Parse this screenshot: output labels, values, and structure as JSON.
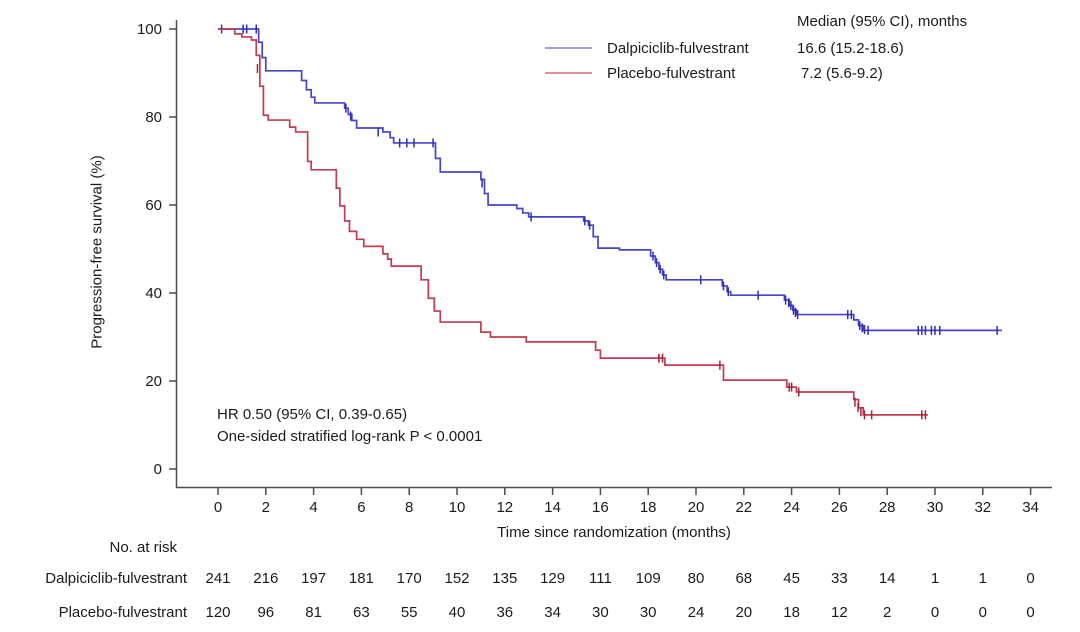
{
  "chart_data": {
    "type": "line",
    "subtype": "kaplan-meier-step",
    "title": "",
    "xlabel": "Time since randomization (months)",
    "ylabel": "Progression-free survival (%)",
    "xlim": [
      0,
      34
    ],
    "ylim": [
      0,
      100
    ],
    "xticks": [
      0,
      2,
      4,
      6,
      8,
      10,
      12,
      14,
      16,
      18,
      20,
      22,
      24,
      26,
      28,
      30,
      32,
      34
    ],
    "yticks": [
      0,
      20,
      40,
      60,
      80,
      100
    ],
    "grid": false,
    "legend_header": "Median (95% CI), months",
    "annotations": [
      "HR 0.50 (95% CI, 0.39-0.65)",
      "One-sided stratified log-rank P < 0.0001"
    ],
    "series": [
      {
        "name": "Dalpiciclib-fulvestrant",
        "median_label": "16.6 (15.2-18.6)",
        "color": "#4444cd",
        "censor_color": "#2d2db4",
        "legend_color": "#9b9ce6",
        "end_time": 32.8,
        "steps": [
          [
            0,
            100
          ],
          [
            1.7,
            97
          ],
          [
            1.85,
            93.5
          ],
          [
            2.0,
            90.5
          ],
          [
            3.5,
            88.3
          ],
          [
            3.7,
            86.2
          ],
          [
            3.9,
            84.5
          ],
          [
            4.05,
            83.2
          ],
          [
            5.3,
            82.0
          ],
          [
            5.45,
            80.6
          ],
          [
            5.6,
            79.2
          ],
          [
            5.8,
            77.5
          ],
          [
            6.9,
            76.6
          ],
          [
            7.2,
            75.3
          ],
          [
            7.35,
            74.1
          ],
          [
            9.1,
            70.6
          ],
          [
            9.3,
            67.5
          ],
          [
            11.0,
            65.8
          ],
          [
            11.15,
            62.6
          ],
          [
            11.3,
            60.0
          ],
          [
            12.5,
            59.2
          ],
          [
            12.75,
            58.2
          ],
          [
            13.0,
            57.3
          ],
          [
            15.3,
            56.4
          ],
          [
            15.5,
            55.4
          ],
          [
            15.7,
            52.8
          ],
          [
            15.9,
            50.2
          ],
          [
            16.8,
            49.8
          ],
          [
            18.1,
            48.4
          ],
          [
            18.3,
            46.9
          ],
          [
            18.45,
            45.4
          ],
          [
            18.6,
            44.1
          ],
          [
            18.75,
            43.0
          ],
          [
            21.1,
            41.6
          ],
          [
            21.3,
            40.3
          ],
          [
            21.45,
            39.5
          ],
          [
            23.7,
            38.4
          ],
          [
            23.9,
            37.2
          ],
          [
            24.05,
            36.1
          ],
          [
            24.2,
            35.1
          ],
          [
            26.6,
            33.9
          ],
          [
            26.8,
            32.6
          ],
          [
            27.0,
            31.5
          ]
        ],
        "censors": [
          [
            0.15,
            100
          ],
          [
            1.05,
            100
          ],
          [
            1.2,
            100
          ],
          [
            1.6,
            100
          ],
          [
            5.35,
            82
          ],
          [
            5.55,
            80.2
          ],
          [
            6.7,
            76.6
          ],
          [
            7.6,
            74.1
          ],
          [
            7.9,
            74.1
          ],
          [
            8.2,
            74.1
          ],
          [
            9.0,
            74.1
          ],
          [
            11.05,
            65.0
          ],
          [
            13.1,
            57.3
          ],
          [
            15.35,
            56.4
          ],
          [
            15.55,
            55.4
          ],
          [
            18.2,
            48.4
          ],
          [
            18.35,
            46.9
          ],
          [
            18.5,
            45.4
          ],
          [
            18.65,
            44.1
          ],
          [
            20.2,
            43.0
          ],
          [
            21.15,
            41.6
          ],
          [
            21.35,
            40.3
          ],
          [
            22.6,
            39.5
          ],
          [
            23.75,
            38.4
          ],
          [
            23.88,
            37.8
          ],
          [
            23.97,
            37.2
          ],
          [
            24.08,
            36.1
          ],
          [
            24.16,
            35.6
          ],
          [
            24.25,
            35.1
          ],
          [
            26.35,
            35.1
          ],
          [
            26.5,
            35.1
          ],
          [
            26.85,
            32.6
          ],
          [
            26.95,
            32.1
          ],
          [
            27.05,
            31.7
          ],
          [
            27.2,
            31.5
          ],
          [
            29.3,
            31.5
          ],
          [
            29.45,
            31.5
          ],
          [
            29.6,
            31.5
          ],
          [
            29.85,
            31.5
          ],
          [
            30.0,
            31.5
          ],
          [
            30.2,
            31.5
          ],
          [
            32.6,
            31.5
          ]
        ]
      },
      {
        "name": "Placebo-fulvestrant",
        "median_label": "7.2 (5.6-9.2)",
        "color": "#c23b50",
        "censor_color": "#a32337",
        "legend_color": "#e58f97",
        "end_time": 29.7,
        "steps": [
          [
            0,
            100
          ],
          [
            0.7,
            98.9
          ],
          [
            1.0,
            98.2
          ],
          [
            1.4,
            97.5
          ],
          [
            1.6,
            94.0
          ],
          [
            1.75,
            87.0
          ],
          [
            1.9,
            80.4
          ],
          [
            2.1,
            79.3
          ],
          [
            3.0,
            77.7
          ],
          [
            3.25,
            76.6
          ],
          [
            3.75,
            69.9
          ],
          [
            3.9,
            68.0
          ],
          [
            4.95,
            63.8
          ],
          [
            5.1,
            59.8
          ],
          [
            5.3,
            56.4
          ],
          [
            5.5,
            54.0
          ],
          [
            5.8,
            52.2
          ],
          [
            6.1,
            50.6
          ],
          [
            6.9,
            48.9
          ],
          [
            7.1,
            47.7
          ],
          [
            7.25,
            46.1
          ],
          [
            8.5,
            43.0
          ],
          [
            8.8,
            38.8
          ],
          [
            9.05,
            35.9
          ],
          [
            9.3,
            33.4
          ],
          [
            11.0,
            31.1
          ],
          [
            11.4,
            30.0
          ],
          [
            12.9,
            28.9
          ],
          [
            15.8,
            27.0
          ],
          [
            16.0,
            25.2
          ],
          [
            18.7,
            23.6
          ],
          [
            21.15,
            20.2
          ],
          [
            23.8,
            18.6
          ],
          [
            24.2,
            17.5
          ],
          [
            26.6,
            15.8
          ],
          [
            26.8,
            13.9
          ],
          [
            27.0,
            12.3
          ]
        ],
        "censors": [
          [
            1.65,
            91.0
          ],
          [
            18.45,
            25.2
          ],
          [
            18.6,
            25.2
          ],
          [
            21.0,
            23.6
          ],
          [
            23.9,
            18.6
          ],
          [
            24.0,
            18.6
          ],
          [
            24.3,
            17.5
          ],
          [
            26.65,
            15.2
          ],
          [
            26.78,
            14.0
          ],
          [
            26.9,
            13.0
          ],
          [
            27.05,
            12.3
          ],
          [
            27.35,
            12.3
          ],
          [
            29.45,
            12.3
          ],
          [
            29.6,
            12.3
          ]
        ]
      }
    ]
  },
  "risk_table": {
    "title": "No. at risk",
    "timepoints": [
      0,
      2,
      4,
      6,
      8,
      10,
      12,
      14,
      16,
      18,
      20,
      22,
      24,
      26,
      28,
      30,
      32,
      34
    ],
    "rows": [
      {
        "label": "Dalpiciclib-fulvestrant",
        "counts": [
          241,
          216,
          197,
          181,
          170,
          152,
          135,
          129,
          111,
          109,
          80,
          68,
          45,
          33,
          14,
          1,
          1,
          0
        ]
      },
      {
        "label": "Placebo-fulvestrant",
        "counts": [
          120,
          96,
          81,
          63,
          55,
          40,
          36,
          34,
          30,
          30,
          24,
          20,
          18,
          12,
          2,
          0,
          0,
          0
        ]
      }
    ]
  },
  "style": {
    "axis_color": "#4d4d4d",
    "text_color": "#1b1b1b"
  }
}
